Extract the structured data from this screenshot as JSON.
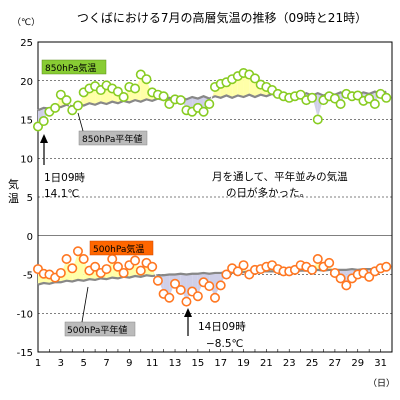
{
  "chart_data": {
    "type": "line",
    "title": "つくばにおける7月の高層気温の推移（09時と21時）",
    "ylabel": "気温",
    "yunit": "（℃）",
    "xunit": "（日）",
    "ylim": [
      -15,
      25
    ],
    "yticks": [
      25,
      20,
      15,
      10,
      5,
      0,
      -5,
      -10,
      -15
    ],
    "xlim": [
      1,
      32
    ],
    "xticks": [
      1,
      3,
      5,
      7,
      9,
      11,
      13,
      15,
      17,
      19,
      21,
      23,
      25,
      27,
      29,
      31
    ],
    "grid": true,
    "colors": {
      "above_fill": "#ffffa8",
      "below_fill": "#cfcfe8",
      "point_850": "#88cc22",
      "point_500": "#ff7722",
      "normal_line": "#888888",
      "tag_850": "#88cc33",
      "tag_500": "#ff6600"
    },
    "series": [
      {
        "name": "850hPa気温",
        "kind": "observed",
        "x": [
          1,
          1.5,
          2,
          2.5,
          3,
          3.5,
          4,
          4.5,
          5,
          5.5,
          6,
          6.5,
          7,
          7.5,
          8,
          8.5,
          9,
          9.5,
          10,
          10.5,
          11,
          11.5,
          12,
          12.5,
          13,
          13.5,
          14,
          14.5,
          15,
          15.5,
          16,
          16.5,
          17,
          17.5,
          18,
          18.5,
          19,
          19.5,
          20,
          20.5,
          21,
          21.5,
          22,
          22.5,
          23,
          23.5,
          24,
          24.5,
          25,
          25.5,
          26,
          26.5,
          27,
          27.5,
          28,
          28.5,
          29,
          29.5,
          30,
          30.5,
          31,
          31.5
        ],
        "values": [
          14.1,
          14.8,
          16.0,
          16.5,
          18.2,
          17.5,
          16.2,
          16.8,
          18.5,
          19.0,
          19.3,
          18.8,
          19.4,
          19.0,
          18.6,
          17.9,
          19.2,
          19.0,
          20.8,
          20.2,
          18.5,
          18.2,
          18.0,
          17.0,
          17.6,
          17.5,
          16.2,
          16.0,
          16.5,
          16.0,
          17.0,
          19.2,
          19.6,
          19.8,
          20.2,
          20.6,
          21.0,
          20.8,
          20.3,
          19.5,
          19.2,
          18.8,
          18.3,
          18.0,
          17.8,
          18.0,
          18.2,
          17.5,
          17.8,
          15.0,
          17.5,
          18.0,
          17.7,
          17.0,
          18.3,
          18.0,
          18.1,
          17.4,
          17.7,
          17.0,
          18.3,
          17.8
        ]
      },
      {
        "name": "850hPa平年値",
        "kind": "normal",
        "x": [
          1,
          1.5,
          2,
          2.5,
          3,
          3.5,
          4,
          4.5,
          5,
          5.5,
          6,
          6.5,
          7,
          7.5,
          8,
          8.5,
          9,
          9.5,
          10,
          10.5,
          11,
          11.5,
          12,
          12.5,
          13,
          13.5,
          14,
          14.5,
          15,
          15.5,
          16,
          16.5,
          17,
          17.5,
          18,
          18.5,
          19,
          19.5,
          20,
          20.5,
          21,
          21.5,
          22,
          22.5,
          23,
          23.5,
          24,
          24.5,
          25,
          25.5,
          26,
          26.5,
          27,
          27.5,
          28,
          28.5,
          29,
          29.5,
          30,
          30.5,
          31,
          31.5
        ],
        "values": [
          16.2,
          16.5,
          16.4,
          16.7,
          16.6,
          16.9,
          16.7,
          17.0,
          16.8,
          17.1,
          16.9,
          17.2,
          17.0,
          17.3,
          17.1,
          17.4,
          17.2,
          17.5,
          17.3,
          17.6,
          17.4,
          17.7,
          17.5,
          17.8,
          17.6,
          17.9,
          17.6,
          17.9,
          17.7,
          18.0,
          17.7,
          18.0,
          17.8,
          18.1,
          17.8,
          18.1,
          17.9,
          18.2,
          17.9,
          18.2,
          18.0,
          18.3,
          18.0,
          18.3,
          18.0,
          18.3,
          18.1,
          18.4,
          18.1,
          18.4,
          18.1,
          18.4,
          18.2,
          18.5,
          18.2,
          18.5,
          18.2,
          18.5,
          18.3,
          18.6,
          18.3,
          18.6
        ]
      },
      {
        "name": "500hPa気温",
        "kind": "observed",
        "x": [
          1,
          1.5,
          2,
          2.5,
          3,
          3.5,
          4,
          4.5,
          5,
          5.5,
          6,
          6.5,
          7,
          7.5,
          8,
          8.5,
          9,
          9.5,
          10,
          10.5,
          11,
          11.5,
          12,
          12.5,
          13,
          13.5,
          14,
          14.5,
          15,
          15.5,
          16,
          16.5,
          17,
          17.5,
          18,
          18.5,
          19,
          19.5,
          20,
          20.5,
          21,
          21.5,
          22,
          22.5,
          23,
          23.5,
          24,
          24.5,
          25,
          25.5,
          26,
          26.5,
          27,
          27.5,
          28,
          28.5,
          29,
          29.5,
          30,
          30.5,
          31,
          31.5
        ],
        "values": [
          -4.3,
          -4.9,
          -5.0,
          -5.4,
          -4.8,
          -3.0,
          -4.2,
          -2.0,
          -3.0,
          -4.5,
          -4.0,
          -4.8,
          -4.3,
          -3.0,
          -4.0,
          -4.8,
          -3.8,
          -3.2,
          -4.5,
          -3.5,
          -4.0,
          -5.8,
          -7.5,
          -8.0,
          -6.2,
          -7.0,
          -8.5,
          -7.2,
          -7.8,
          -6.0,
          -6.5,
          -8.0,
          -6.4,
          -5.0,
          -4.2,
          -4.6,
          -3.8,
          -5.0,
          -4.4,
          -4.3,
          -4.0,
          -3.8,
          -4.3,
          -4.6,
          -4.6,
          -4.4,
          -3.8,
          -4.0,
          -4.4,
          -3.0,
          -4.0,
          -3.5,
          -4.8,
          -5.5,
          -6.4,
          -5.5,
          -5.0,
          -4.8,
          -5.3,
          -4.6,
          -4.2,
          -4.0
        ]
      },
      {
        "name": "500hPa平年値",
        "kind": "normal",
        "x": [
          1,
          1.5,
          2,
          2.5,
          3,
          3.5,
          4,
          4.5,
          5,
          5.5,
          6,
          6.5,
          7,
          7.5,
          8,
          8.5,
          9,
          9.5,
          10,
          10.5,
          11,
          11.5,
          12,
          12.5,
          13,
          13.5,
          14,
          14.5,
          15,
          15.5,
          16,
          16.5,
          17,
          17.5,
          18,
          18.5,
          19,
          19.5,
          20,
          20.5,
          21,
          21.5,
          22,
          22.5,
          23,
          23.5,
          24,
          24.5,
          25,
          25.5,
          26,
          26.5,
          27,
          27.5,
          28,
          28.5,
          29,
          29.5,
          30,
          30.5,
          31,
          31.5
        ],
        "values": [
          -6.3,
          -6.1,
          -6.2,
          -6.0,
          -6.0,
          -5.8,
          -5.9,
          -5.7,
          -5.8,
          -5.6,
          -5.7,
          -5.5,
          -5.6,
          -5.4,
          -5.5,
          -5.3,
          -5.4,
          -5.2,
          -5.3,
          -5.1,
          -5.2,
          -5.1,
          -5.1,
          -5.0,
          -5.0,
          -4.9,
          -5.0,
          -4.9,
          -4.9,
          -4.8,
          -4.9,
          -4.8,
          -4.8,
          -4.7,
          -4.8,
          -4.7,
          -4.7,
          -4.6,
          -4.7,
          -4.6,
          -4.6,
          -4.6,
          -4.6,
          -4.5,
          -4.6,
          -4.5,
          -4.5,
          -4.5,
          -4.5,
          -4.4,
          -4.5,
          -4.4,
          -4.4,
          -4.4,
          -4.4,
          -4.3,
          -4.4,
          -4.3,
          -4.3,
          -4.3,
          -4.3,
          -4.2
        ]
      }
    ],
    "tags": {
      "t850": "850hPa気温",
      "t850_normal": "850hPa平年値",
      "t500": "500hPa気温",
      "t500_normal": "500hPa平年値"
    },
    "annotations": {
      "first_line1": "1日09時",
      "first_line2": "14.1℃",
      "summary_line1": "月を通して、平年並みの気温",
      "summary_line2": "の日が多かった。",
      "min_line1": "14日09時",
      "min_line2": "−8.5℃"
    }
  }
}
